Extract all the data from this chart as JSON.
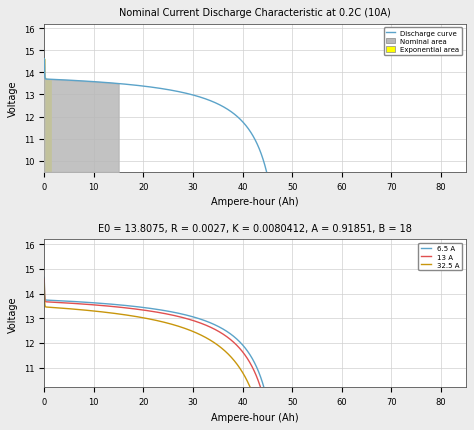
{
  "title1": "Nominal Current Discharge Characteristic at 0.2C (10A)",
  "title2": "E0 = 13.8075, R = 0.0027, K = 0.0080412, A = 0.91851, B = 18",
  "xlabel": "Ampere-hour (Ah)",
  "ylabel": "Voltage",
  "E0": 13.8075,
  "R": 0.0027,
  "K": 0.0080412,
  "A": 0.91851,
  "B": 18,
  "Q": 50,
  "I_nom": 10.0,
  "xlim": [
    0,
    85
  ],
  "ylim1": [
    9.5,
    16.2
  ],
  "ylim2": [
    10.2,
    16.2
  ],
  "xticks": [
    0,
    10,
    20,
    30,
    40,
    50,
    60,
    70,
    80
  ],
  "yticks1": [
    10,
    11,
    12,
    13,
    14,
    15,
    16
  ],
  "yticks2": [
    11,
    12,
    13,
    14,
    15,
    16
  ],
  "nominal_end_cap": 15.0,
  "exp_end_cap": 1.3,
  "currents": [
    6.5,
    13.0,
    32.5
  ],
  "curve_color": "#5BA3C9",
  "nominal_color": "#B8B8B8",
  "exp_color": "#FFFF00",
  "colors_multi": [
    "#5BA3C9",
    "#E05050",
    "#C8960C"
  ],
  "legend_labels_multi": [
    "6.5 A",
    "13 A",
    "32.5 A"
  ],
  "fig_facecolor": "#ECECEC",
  "ax_facecolor": "#FFFFFF",
  "grid_color": "#D0D0D0"
}
